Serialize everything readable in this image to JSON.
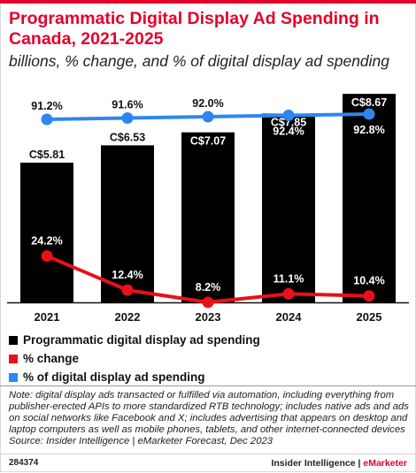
{
  "header": {
    "title": "Programmatic Digital Display Ad Spending in Canada, 2021-2025",
    "subtitle": "billions, % change, and % of digital display ad spending"
  },
  "colors": {
    "accent": "#e4002b",
    "bar": "#000000",
    "change_line": "#e8101a",
    "share_line": "#2e86f0"
  },
  "chart_data": {
    "type": "bar",
    "categories": [
      "2021",
      "2022",
      "2023",
      "2024",
      "2025"
    ],
    "series": [
      {
        "name": "Programmatic digital display ad spending",
        "type": "bar",
        "values": [
          5.81,
          6.53,
          7.07,
          7.85,
          8.67
        ],
        "labels": [
          "C$5.81",
          "C$6.53",
          "C$7.07",
          "C$7.85",
          "C$8.67"
        ],
        "color": "#000000"
      },
      {
        "name": "% change",
        "type": "line",
        "values": [
          24.2,
          12.4,
          8.2,
          11.1,
          10.4
        ],
        "labels": [
          "24.2%",
          "12.4%",
          "8.2%",
          "11.1%",
          "10.4%"
        ],
        "color": "#e8101a"
      },
      {
        "name": "% of digital display ad spending",
        "type": "line",
        "values": [
          91.2,
          91.6,
          92.0,
          92.4,
          92.8
        ],
        "labels": [
          "91.2%",
          "91.6%",
          "92.0%",
          "92.4%",
          "92.8%"
        ],
        "color": "#2e86f0"
      }
    ],
    "title": "Programmatic Digital Display Ad Spending in Canada, 2021-2025",
    "xlabel": "",
    "ylabel": "",
    "grid": false,
    "legend_position": "bottom"
  },
  "legend": [
    {
      "label": "Programmatic digital display ad spending",
      "color": "#000000"
    },
    {
      "label": "% change",
      "color": "#e8101a"
    },
    {
      "label": "% of digital display ad spending",
      "color": "#2e86f0"
    }
  ],
  "note": "Note: digital display ads transacted or fulfilled via automation, including everything from publisher-erected APIs to more standardized RTB technology; includes native ads and ads on social networks like Facebook and X; includes advertising that appears on desktop and laptop computers as well as mobile phones, tablets, and other internet-connected devices",
  "source": "Source: Insider Intelligence | eMarketer Forecast, Dec 2023",
  "footer": {
    "id": "284374",
    "brand_a": "Insider Intelligence",
    "separator": " | ",
    "brand_b": "eMarketer"
  }
}
